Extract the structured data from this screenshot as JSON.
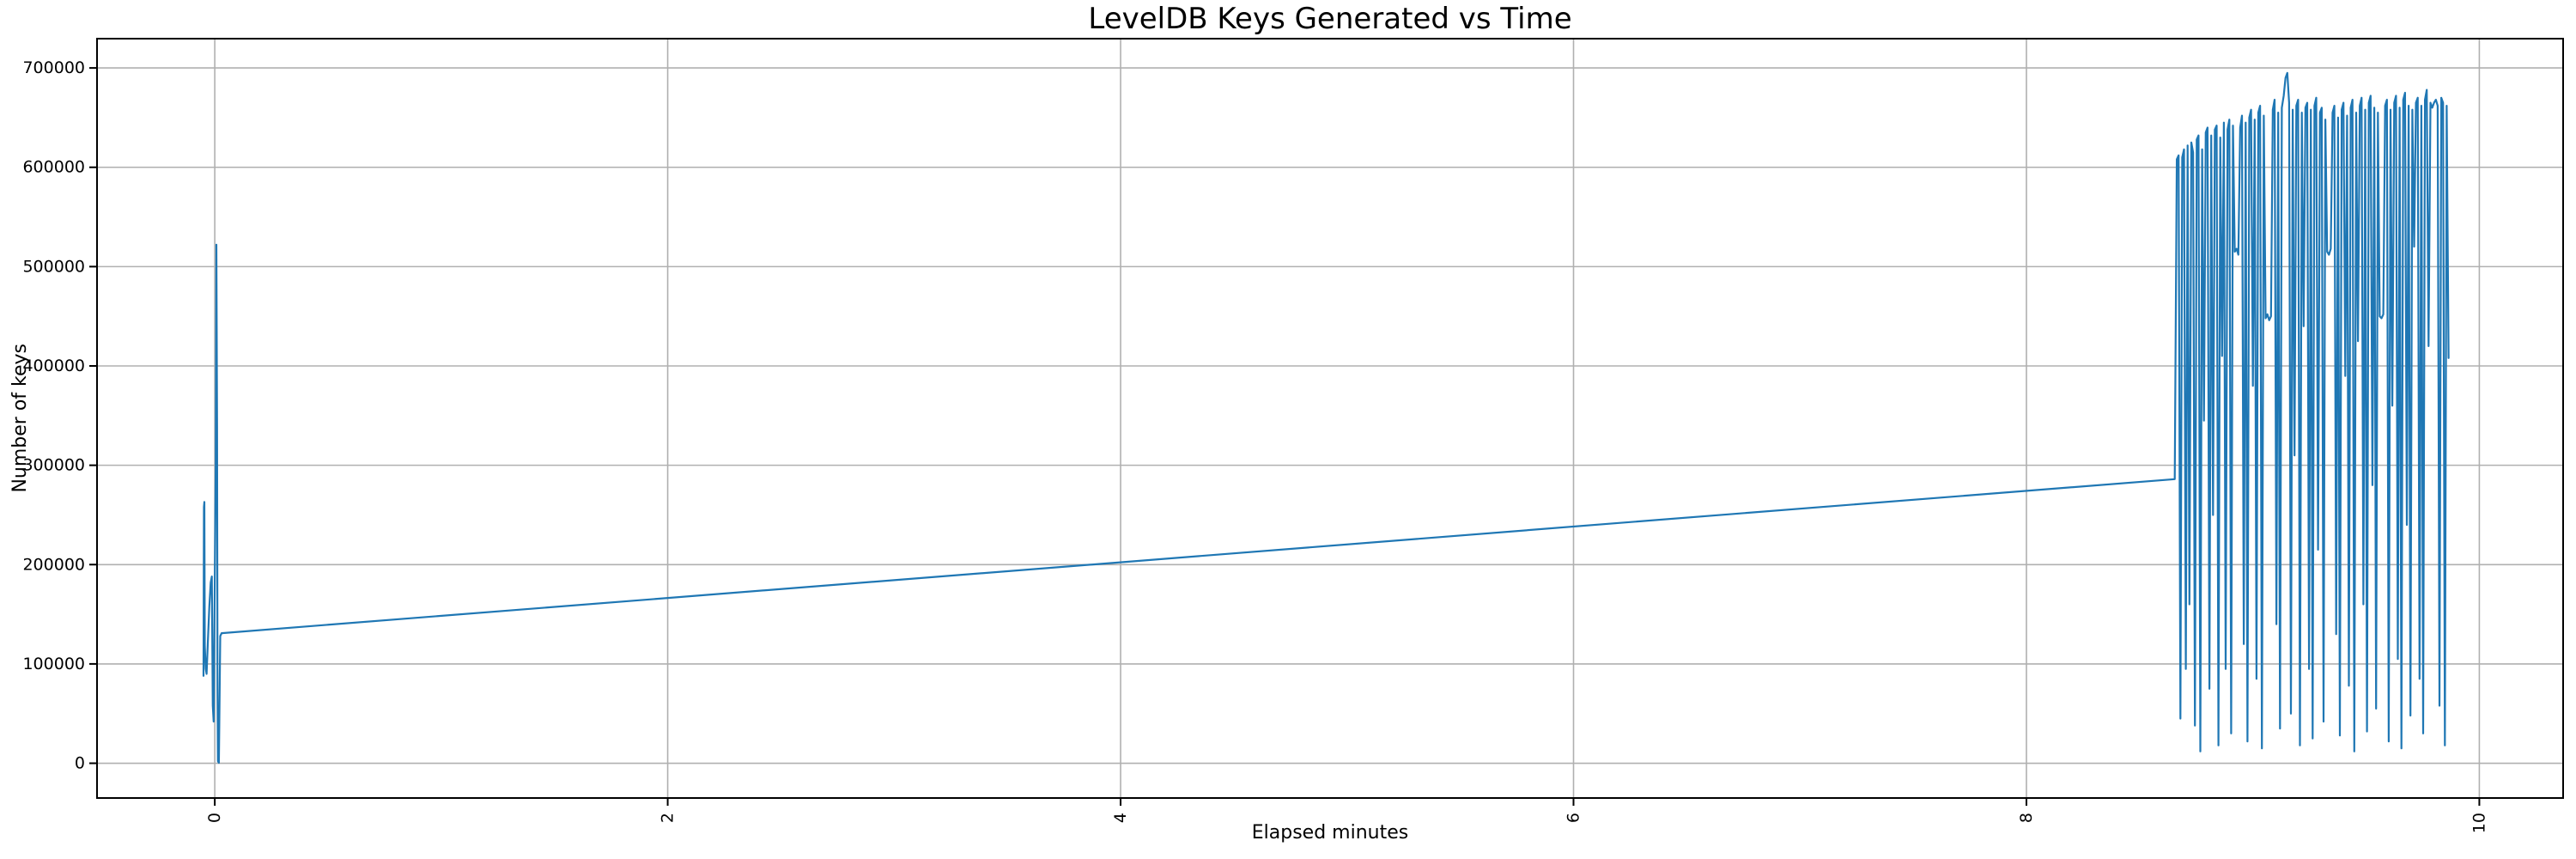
{
  "chart_data": {
    "type": "line",
    "title": "LevelDB Keys Generated vs Time",
    "xlabel": "Elapsed minutes",
    "ylabel": "Number of keys",
    "xlim": [
      -0.52,
      10.37
    ],
    "ylim": [
      -35000,
      729500
    ],
    "xticks": [
      0,
      2,
      4,
      6,
      8,
      10
    ],
    "yticks": [
      0,
      100000,
      200000,
      300000,
      400000,
      500000,
      600000,
      700000
    ],
    "grid": true,
    "legend": false,
    "line_color": "#1f77b4",
    "grid_color": "#b0b0b0",
    "spine_color": "#000000",
    "series": [
      {
        "name": "keys",
        "points": [
          [
            -0.05,
            88000
          ],
          [
            -0.048,
            258000
          ],
          [
            -0.046,
            263000
          ],
          [
            -0.044,
            118000
          ],
          [
            -0.04,
            95000
          ],
          [
            -0.036,
            90000
          ],
          [
            -0.03,
            125000
          ],
          [
            -0.024,
            158000
          ],
          [
            -0.018,
            182000
          ],
          [
            -0.013,
            188000
          ],
          [
            -0.009,
            58000
          ],
          [
            -0.005,
            42000
          ],
          [
            0.0,
            180000
          ],
          [
            0.004,
            300000
          ],
          [
            0.007,
            522000
          ],
          [
            0.01,
            340000
          ],
          [
            0.012,
            75000
          ],
          [
            0.014,
            2000
          ],
          [
            0.018,
            500
          ],
          [
            0.024,
            128000
          ],
          [
            0.03,
            131000
          ],
          [
            8.655,
            286000
          ],
          [
            8.664,
            608000
          ],
          [
            8.672,
            612000
          ],
          [
            8.68,
            45000
          ],
          [
            8.688,
            610000
          ],
          [
            8.696,
            618000
          ],
          [
            8.704,
            95000
          ],
          [
            8.712,
            622000
          ],
          [
            8.72,
            160000
          ],
          [
            8.728,
            625000
          ],
          [
            8.736,
            615000
          ],
          [
            8.744,
            38000
          ],
          [
            8.752,
            628000
          ],
          [
            8.76,
            632000
          ],
          [
            8.768,
            12000
          ],
          [
            8.776,
            618000
          ],
          [
            8.784,
            345000
          ],
          [
            8.792,
            635000
          ],
          [
            8.8,
            640000
          ],
          [
            8.808,
            75000
          ],
          [
            8.816,
            632000
          ],
          [
            8.824,
            250000
          ],
          [
            8.832,
            638000
          ],
          [
            8.84,
            642000
          ],
          [
            8.848,
            18000
          ],
          [
            8.856,
            630000
          ],
          [
            8.864,
            410000
          ],
          [
            8.872,
            645000
          ],
          [
            8.88,
            95000
          ],
          [
            8.888,
            638000
          ],
          [
            8.896,
            648000
          ],
          [
            8.904,
            30000
          ],
          [
            8.912,
            642000
          ],
          [
            8.92,
            515000
          ],
          [
            8.928,
            518000
          ],
          [
            8.936,
            512000
          ],
          [
            8.944,
            640000
          ],
          [
            8.952,
            652000
          ],
          [
            8.96,
            120000
          ],
          [
            8.968,
            645000
          ],
          [
            8.976,
            22000
          ],
          [
            8.984,
            650000
          ],
          [
            8.992,
            658000
          ],
          [
            9.0,
            380000
          ],
          [
            9.008,
            648000
          ],
          [
            9.016,
            85000
          ],
          [
            9.024,
            655000
          ],
          [
            9.032,
            662000
          ],
          [
            9.04,
            15000
          ],
          [
            9.048,
            652000
          ],
          [
            9.056,
            448000
          ],
          [
            9.064,
            452000
          ],
          [
            9.072,
            446000
          ],
          [
            9.08,
            450000
          ],
          [
            9.088,
            658000
          ],
          [
            9.096,
            668000
          ],
          [
            9.104,
            140000
          ],
          [
            9.112,
            655000
          ],
          [
            9.12,
            35000
          ],
          [
            9.128,
            660000
          ],
          [
            9.136,
            672000
          ],
          [
            9.144,
            690000
          ],
          [
            9.152,
            695000
          ],
          [
            9.16,
            665000
          ],
          [
            9.168,
            50000
          ],
          [
            9.176,
            658000
          ],
          [
            9.184,
            310000
          ],
          [
            9.192,
            662000
          ],
          [
            9.2,
            668000
          ],
          [
            9.208,
            18000
          ],
          [
            9.216,
            655000
          ],
          [
            9.224,
            440000
          ],
          [
            9.232,
            660000
          ],
          [
            9.24,
            665000
          ],
          [
            9.248,
            95000
          ],
          [
            9.256,
            658000
          ],
          [
            9.264,
            25000
          ],
          [
            9.272,
            662000
          ],
          [
            9.28,
            670000
          ],
          [
            9.288,
            215000
          ],
          [
            9.296,
            655000
          ],
          [
            9.304,
            660000
          ],
          [
            9.312,
            42000
          ],
          [
            9.32,
            648000
          ],
          [
            9.328,
            515000
          ],
          [
            9.336,
            512000
          ],
          [
            9.344,
            518000
          ],
          [
            9.352,
            655000
          ],
          [
            9.36,
            662000
          ],
          [
            9.368,
            130000
          ],
          [
            9.376,
            650000
          ],
          [
            9.384,
            28000
          ],
          [
            9.392,
            658000
          ],
          [
            9.4,
            665000
          ],
          [
            9.408,
            390000
          ],
          [
            9.416,
            652000
          ],
          [
            9.424,
            78000
          ],
          [
            9.432,
            660000
          ],
          [
            9.44,
            668000
          ],
          [
            9.448,
            12000
          ],
          [
            9.456,
            655000
          ],
          [
            9.464,
            425000
          ],
          [
            9.472,
            662000
          ],
          [
            9.48,
            670000
          ],
          [
            9.488,
            160000
          ],
          [
            9.496,
            658000
          ],
          [
            9.504,
            32000
          ],
          [
            9.512,
            665000
          ],
          [
            9.52,
            672000
          ],
          [
            9.528,
            280000
          ],
          [
            9.536,
            660000
          ],
          [
            9.544,
            55000
          ],
          [
            9.552,
            655000
          ],
          [
            9.56,
            450000
          ],
          [
            9.568,
            448000
          ],
          [
            9.576,
            452000
          ],
          [
            9.584,
            662000
          ],
          [
            9.592,
            668000
          ],
          [
            9.6,
            22000
          ],
          [
            9.608,
            658000
          ],
          [
            9.616,
            360000
          ],
          [
            9.624,
            665000
          ],
          [
            9.632,
            672000
          ],
          [
            9.64,
            105000
          ],
          [
            9.648,
            660000
          ],
          [
            9.656,
            15000
          ],
          [
            9.664,
            668000
          ],
          [
            9.672,
            675000
          ],
          [
            9.68,
            240000
          ],
          [
            9.688,
            662000
          ],
          [
            9.696,
            48000
          ],
          [
            9.704,
            658000
          ],
          [
            9.712,
            520000
          ],
          [
            9.72,
            665000
          ],
          [
            9.728,
            670000
          ],
          [
            9.736,
            85000
          ],
          [
            9.744,
            662000
          ],
          [
            9.752,
            30000
          ],
          [
            9.76,
            668000
          ],
          [
            9.768,
            678000
          ],
          [
            9.776,
            420000
          ],
          [
            9.784,
            665000
          ],
          [
            9.792,
            660000
          ],
          [
            9.8,
            665000
          ],
          [
            9.808,
            668000
          ],
          [
            9.816,
            662000
          ],
          [
            9.824,
            58000
          ],
          [
            9.832,
            670000
          ],
          [
            9.84,
            665000
          ],
          [
            9.848,
            18000
          ],
          [
            9.856,
            662000
          ],
          [
            9.864,
            408000
          ]
        ]
      }
    ]
  }
}
